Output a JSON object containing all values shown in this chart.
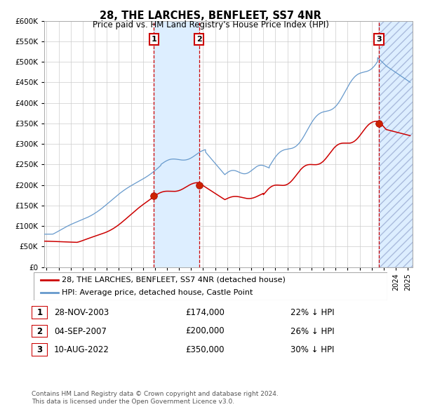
{
  "title": "28, THE LARCHES, BENFLEET, SS7 4NR",
  "subtitle": "Price paid vs. HM Land Registry's House Price Index (HPI)",
  "legend_line1": "28, THE LARCHES, BENFLEET, SS7 4NR (detached house)",
  "legend_line2": "HPI: Average price, detached house, Castle Point",
  "footer_line1": "Contains HM Land Registry data © Crown copyright and database right 2024.",
  "footer_line2": "This data is licensed under the Open Government Licence v3.0.",
  "transactions": [
    {
      "num": 1,
      "date": "28-NOV-2003",
      "price": "£174,000",
      "pct": "22% ↓ HPI"
    },
    {
      "num": 2,
      "date": "04-SEP-2007",
      "price": "£200,000",
      "pct": "26% ↓ HPI"
    },
    {
      "num": 3,
      "date": "10-AUG-2022",
      "price": "£350,000",
      "pct": "30% ↓ HPI"
    }
  ],
  "transaction_dates_decimal": [
    2003.91,
    2007.67,
    2022.6
  ],
  "transaction_prices": [
    174000,
    200000,
    350000
  ],
  "hpi_color": "#6699cc",
  "price_color": "#cc0000",
  "shading_color": "#ddeeff",
  "dashed_color": "#cc0000",
  "grid_color": "#cccccc",
  "background_color": "#ffffff",
  "ylim": [
    0,
    600000
  ],
  "yticks": [
    0,
    50000,
    100000,
    150000,
    200000,
    250000,
    300000,
    350000,
    400000,
    450000,
    500000,
    550000,
    600000
  ],
  "xstart": 1994.8,
  "xend": 2025.4
}
